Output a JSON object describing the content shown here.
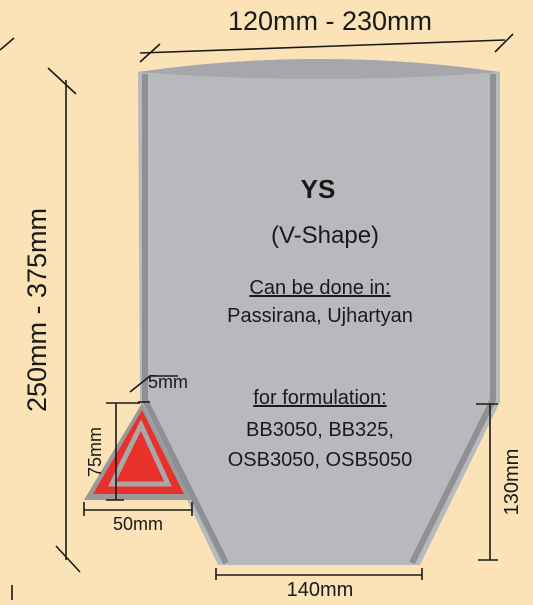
{
  "colors": {
    "background": "#fbe3b7",
    "bag_fill": "#b8b9bc",
    "bag_edge": "#8f9094",
    "triangle_fill": "#e8312b",
    "triangle_border": "#9a9a9a",
    "line": "#1a1a1a"
  },
  "dimensions": {
    "top_width": "120mm - 230mm",
    "height": "250mm - 375mm",
    "bottom_width": "140mm",
    "v_height": "130mm",
    "triangle_gap": "5mm",
    "triangle_height": "75mm",
    "triangle_base": "50mm"
  },
  "bag": {
    "title": "YS",
    "subtitle": "(V-Shape)",
    "done_in_label": "Can be done in:",
    "done_in_value": "Passirana, Ujhartyan",
    "formulation_label": "for formulation:",
    "formulation_line1": "BB3050, BB325,",
    "formulation_line2": "OSB3050, OSB5050"
  }
}
